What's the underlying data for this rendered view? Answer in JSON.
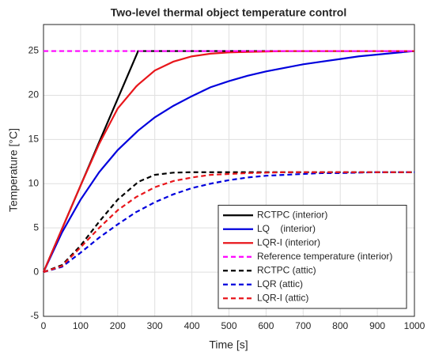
{
  "chart_data": {
    "type": "line",
    "title": "Two-level thermal object temperature control",
    "x_label": "Time [s]",
    "y_label": "Temperature [°C]",
    "x": [
      0,
      50,
      100,
      150,
      200,
      250,
      255,
      300,
      350,
      400,
      450,
      500,
      550,
      600,
      650,
      700,
      750,
      800,
      850,
      900,
      950,
      1000
    ],
    "xlim": [
      0,
      1000
    ],
    "xticks": [
      0,
      100,
      200,
      300,
      400,
      500,
      600,
      700,
      800,
      900,
      1000
    ],
    "ylim": [
      -5,
      28
    ],
    "yticks": [
      -5,
      0,
      5,
      10,
      15,
      20,
      25
    ],
    "grid": true,
    "legend": "lower right",
    "series": [
      {
        "name": "RCTPC (interior)",
        "color": "#000000",
        "dashed": false,
        "values": [
          0,
          4.9,
          9.8,
          14.7,
          19.6,
          24.5,
          25,
          25,
          25,
          25,
          25,
          25,
          25,
          25,
          25,
          25,
          25,
          25,
          25,
          25,
          25,
          25
        ]
      },
      {
        "name": "LQ    (interior)",
        "color": "#0000dd",
        "dashed": false,
        "values": [
          0,
          4.5,
          8.2,
          11.3,
          13.8,
          15.8,
          16.0,
          17.5,
          18.8,
          19.9,
          20.9,
          21.6,
          22.2,
          22.7,
          23.1,
          23.5,
          23.8,
          24.1,
          24.4,
          24.6,
          24.8,
          25
        ]
      },
      {
        "name": "LQR-I (interior)",
        "color": "#e8161b",
        "dashed": false,
        "values": [
          0,
          4.9,
          9.8,
          14.5,
          18.5,
          21,
          21.2,
          22.8,
          23.8,
          24.4,
          24.7,
          24.85,
          24.9,
          24.95,
          25,
          25,
          25,
          25,
          25,
          25,
          25,
          25
        ]
      },
      {
        "name": "Reference temperature (interior)",
        "color": "#ff00ff",
        "dashed": true,
        "values": [
          25,
          25,
          25,
          25,
          25,
          25,
          25,
          25,
          25,
          25,
          25,
          25,
          25,
          25,
          25,
          25,
          25,
          25,
          25,
          25,
          25,
          25
        ]
      },
      {
        "name": "RCTPC (attic)",
        "color": "#000000",
        "dashed": true,
        "values": [
          0,
          0.8,
          3,
          5.7,
          8.2,
          10,
          10.2,
          11,
          11.25,
          11.3,
          11.3,
          11.3,
          11.3,
          11.3,
          11.3,
          11.3,
          11.3,
          11.3,
          11.3,
          11.3,
          11.3,
          11.3
        ]
      },
      {
        "name": "LQR (attic)",
        "color": "#0000dd",
        "dashed": true,
        "values": [
          0,
          0.6,
          2.2,
          3.9,
          5.4,
          6.8,
          6.9,
          7.9,
          8.8,
          9.5,
          10,
          10.4,
          10.7,
          10.9,
          11,
          11.1,
          11.2,
          11.2,
          11.25,
          11.3,
          11.3,
          11.3
        ]
      },
      {
        "name": "LQR-I (attic)",
        "color": "#e8161b",
        "dashed": true,
        "values": [
          0,
          0.7,
          2.8,
          5,
          7,
          8.5,
          8.6,
          9.6,
          10.3,
          10.7,
          11,
          11.1,
          11.2,
          11.25,
          11.3,
          11.3,
          11.3,
          11.3,
          11.3,
          11.3,
          11.3,
          11.3
        ]
      }
    ]
  }
}
